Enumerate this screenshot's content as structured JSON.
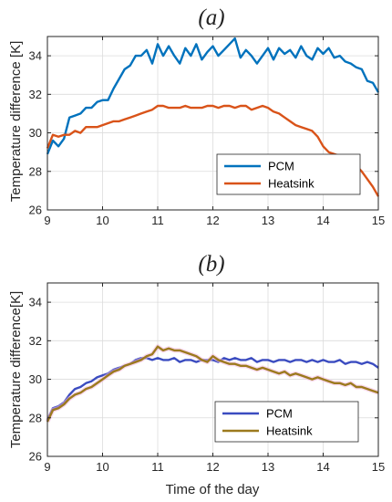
{
  "chart_data": [
    {
      "type": "line",
      "title": "(a)",
      "xlabel": "",
      "ylabel": "Temperature difference [K]",
      "xlim": [
        9,
        15
      ],
      "ylim": [
        26,
        35
      ],
      "xticks": [
        9,
        10,
        11,
        12,
        13,
        14,
        15
      ],
      "yticks": [
        26,
        28,
        30,
        32,
        34
      ],
      "grid": true,
      "legend_position": "bottom-right",
      "series": [
        {
          "name": "PCM",
          "color": "#0072BD",
          "x": [
            9.0,
            9.1,
            9.2,
            9.3,
            9.4,
            9.5,
            9.6,
            9.7,
            9.8,
            9.9,
            10.0,
            10.1,
            10.2,
            10.3,
            10.4,
            10.5,
            10.6,
            10.7,
            10.8,
            10.9,
            11.0,
            11.1,
            11.2,
            11.3,
            11.4,
            11.5,
            11.6,
            11.7,
            11.8,
            11.9,
            12.0,
            12.1,
            12.2,
            12.3,
            12.4,
            12.5,
            12.6,
            12.7,
            12.8,
            12.9,
            13.0,
            13.1,
            13.2,
            13.3,
            13.4,
            13.5,
            13.6,
            13.7,
            13.8,
            13.9,
            14.0,
            14.1,
            14.2,
            14.3,
            14.4,
            14.5,
            14.6,
            14.7,
            14.8,
            14.9,
            15.0
          ],
          "y": [
            28.9,
            29.6,
            29.3,
            29.7,
            30.8,
            30.9,
            31.0,
            31.3,
            31.3,
            31.6,
            31.7,
            31.7,
            32.3,
            32.8,
            33.3,
            33.5,
            34.0,
            34.0,
            34.3,
            33.6,
            34.6,
            34.0,
            34.5,
            34.0,
            33.6,
            34.4,
            34.0,
            34.6,
            33.8,
            34.2,
            34.5,
            34.0,
            34.3,
            34.6,
            34.9,
            33.9,
            34.3,
            34.0,
            33.6,
            34.0,
            34.4,
            33.8,
            34.4,
            34.1,
            34.3,
            33.9,
            34.5,
            34.0,
            33.8,
            34.4,
            34.1,
            34.4,
            33.9,
            34.0,
            33.7,
            33.6,
            33.4,
            33.3,
            32.7,
            32.6,
            32.1
          ]
        },
        {
          "name": "Heatsink",
          "color": "#D95319",
          "x": [
            9.0,
            9.1,
            9.2,
            9.3,
            9.4,
            9.5,
            9.6,
            9.7,
            9.8,
            9.9,
            10.0,
            10.1,
            10.2,
            10.3,
            10.4,
            10.5,
            10.6,
            10.7,
            10.8,
            10.9,
            11.0,
            11.1,
            11.2,
            11.3,
            11.4,
            11.5,
            11.6,
            11.7,
            11.8,
            11.9,
            12.0,
            12.1,
            12.2,
            12.3,
            12.4,
            12.5,
            12.6,
            12.7,
            12.8,
            12.9,
            13.0,
            13.1,
            13.2,
            13.3,
            13.4,
            13.5,
            13.6,
            13.7,
            13.8,
            13.9,
            14.0,
            14.1,
            14.2,
            14.3,
            14.4,
            14.5,
            14.6,
            14.7,
            14.8,
            14.9,
            15.0
          ],
          "y": [
            29.2,
            29.9,
            29.8,
            29.9,
            29.9,
            30.1,
            30.0,
            30.3,
            30.3,
            30.3,
            30.4,
            30.5,
            30.6,
            30.6,
            30.7,
            30.8,
            30.9,
            31.0,
            31.1,
            31.2,
            31.4,
            31.4,
            31.3,
            31.3,
            31.3,
            31.4,
            31.3,
            31.3,
            31.3,
            31.4,
            31.4,
            31.3,
            31.4,
            31.4,
            31.3,
            31.4,
            31.4,
            31.2,
            31.3,
            31.4,
            31.3,
            31.1,
            31.0,
            30.8,
            30.6,
            30.4,
            30.3,
            30.2,
            30.1,
            29.8,
            29.3,
            29.0,
            28.9,
            28.8,
            28.7,
            28.5,
            28.3,
            28.0,
            27.6,
            27.2,
            26.7
          ]
        }
      ]
    },
    {
      "type": "line",
      "title": "(b)",
      "xlabel": "Time of the day",
      "ylabel": "Temperature difference[K]",
      "xlim": [
        9,
        15
      ],
      "ylim": [
        26,
        35
      ],
      "xticks": [
        9,
        10,
        11,
        12,
        13,
        14,
        15
      ],
      "yticks": [
        26,
        28,
        30,
        32,
        34
      ],
      "grid": true,
      "legend_position": "bottom-right",
      "series": [
        {
          "name": "PCM",
          "color": "#3B4CC0",
          "x": [
            9.0,
            9.1,
            9.2,
            9.3,
            9.4,
            9.5,
            9.6,
            9.7,
            9.8,
            9.9,
            10.0,
            10.1,
            10.2,
            10.3,
            10.4,
            10.5,
            10.6,
            10.7,
            10.8,
            10.9,
            11.0,
            11.1,
            11.2,
            11.3,
            11.4,
            11.5,
            11.6,
            11.7,
            11.8,
            11.9,
            12.0,
            12.1,
            12.2,
            12.3,
            12.4,
            12.5,
            12.6,
            12.7,
            12.8,
            12.9,
            13.0,
            13.1,
            13.2,
            13.3,
            13.4,
            13.5,
            13.6,
            13.7,
            13.8,
            13.9,
            14.0,
            14.1,
            14.2,
            14.3,
            14.4,
            14.5,
            14.6,
            14.7,
            14.8,
            14.9,
            15.0
          ],
          "y": [
            27.9,
            28.5,
            28.6,
            28.8,
            29.2,
            29.5,
            29.6,
            29.8,
            29.9,
            30.1,
            30.2,
            30.3,
            30.5,
            30.6,
            30.7,
            30.8,
            31.0,
            31.1,
            31.1,
            31.0,
            31.1,
            31.0,
            31.0,
            31.1,
            30.9,
            31.0,
            31.0,
            30.9,
            31.0,
            31.0,
            31.0,
            30.9,
            31.1,
            31.0,
            31.1,
            31.0,
            31.0,
            31.1,
            30.9,
            31.0,
            31.0,
            30.9,
            31.0,
            31.0,
            30.9,
            31.0,
            31.0,
            30.9,
            31.0,
            30.9,
            31.0,
            30.9,
            30.9,
            31.0,
            30.8,
            30.9,
            30.9,
            30.8,
            30.9,
            30.8,
            30.6
          ]
        },
        {
          "name": "Heatsink",
          "color": "#9C7A1E",
          "x": [
            9.0,
            9.1,
            9.2,
            9.3,
            9.4,
            9.5,
            9.6,
            9.7,
            9.8,
            9.9,
            10.0,
            10.1,
            10.2,
            10.3,
            10.4,
            10.5,
            10.6,
            10.7,
            10.8,
            10.9,
            11.0,
            11.1,
            11.2,
            11.3,
            11.4,
            11.5,
            11.6,
            11.7,
            11.8,
            11.9,
            12.0,
            12.1,
            12.2,
            12.3,
            12.4,
            12.5,
            12.6,
            12.7,
            12.8,
            12.9,
            13.0,
            13.1,
            13.2,
            13.3,
            13.4,
            13.5,
            13.6,
            13.7,
            13.8,
            13.9,
            14.0,
            14.1,
            14.2,
            14.3,
            14.4,
            14.5,
            14.6,
            14.7,
            14.8,
            14.9,
            15.0
          ],
          "y": [
            27.8,
            28.4,
            28.5,
            28.7,
            29.0,
            29.2,
            29.3,
            29.5,
            29.6,
            29.8,
            30.0,
            30.2,
            30.4,
            30.5,
            30.7,
            30.8,
            30.9,
            31.0,
            31.2,
            31.3,
            31.7,
            31.5,
            31.6,
            31.5,
            31.5,
            31.4,
            31.3,
            31.2,
            31.0,
            30.9,
            31.2,
            31.0,
            30.9,
            30.8,
            30.8,
            30.7,
            30.7,
            30.6,
            30.5,
            30.6,
            30.5,
            30.4,
            30.3,
            30.4,
            30.2,
            30.3,
            30.2,
            30.1,
            30.0,
            30.1,
            30.0,
            29.9,
            29.8,
            29.8,
            29.7,
            29.8,
            29.6,
            29.6,
            29.5,
            29.4,
            29.3
          ]
        }
      ]
    }
  ]
}
